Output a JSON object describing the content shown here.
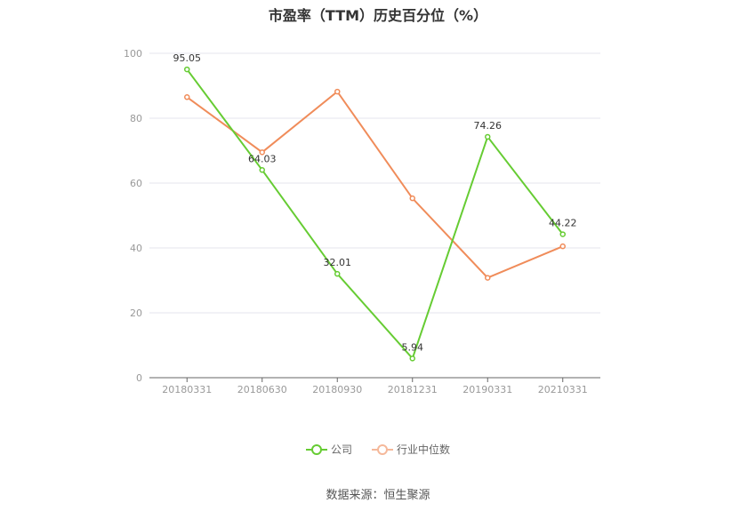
{
  "title": "市盈率（TTM）历史百分位（%）",
  "source": "数据来源：恒生聚源",
  "chart_data": {
    "type": "line",
    "title": "市盈率（TTM）历史百分位（%）",
    "categories": [
      "20180331",
      "20180630",
      "20180930",
      "20181231",
      "20190331",
      "20210331"
    ],
    "ylim": [
      0,
      100
    ],
    "yticks": [
      0,
      20,
      40,
      60,
      80,
      100
    ],
    "grid": true,
    "legend_position": "bottom",
    "series": [
      {
        "name": "公司",
        "color": "#66cc33",
        "values": [
          95.05,
          64.03,
          32.01,
          5.94,
          74.26,
          44.22
        ],
        "labels": [
          "95.05",
          "64.03",
          "32.01",
          "5.94",
          "74.26",
          "44.22"
        ]
      },
      {
        "name": "行业中位数",
        "color": "#f08c5a",
        "values": [
          86.5,
          69.5,
          88.2,
          55.3,
          30.8,
          40.5
        ]
      }
    ]
  }
}
